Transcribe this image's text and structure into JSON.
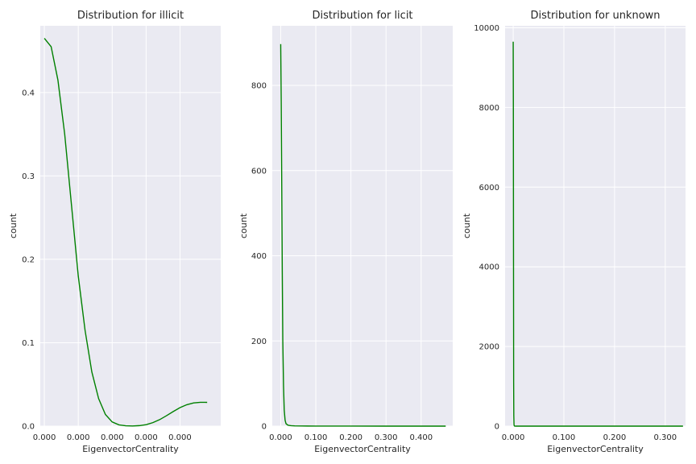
{
  "chart_data": [
    {
      "type": "line",
      "title": "Distribution for illicit",
      "xlabel": "EigenvectorCentrality",
      "ylabel": "count",
      "grid": true,
      "color": "#008000",
      "xlim": [
        -1.2e-07,
        5.2e-06
      ],
      "ylim": [
        0,
        0.48
      ],
      "xticks": [
        0.0,
        1e-06,
        2e-06,
        3e-06,
        4e-06
      ],
      "xtick_labels": [
        "0.000",
        "0.000",
        "0.000",
        "0.000",
        "0.000"
      ],
      "yticks": [
        0.0,
        0.1,
        0.2,
        0.3,
        0.4
      ],
      "ytick_labels": [
        "0.0",
        "0.1",
        "0.2",
        "0.3",
        "0.4"
      ],
      "x": [
        0.0,
        2e-07,
        4e-07,
        6e-07,
        8e-07,
        1e-06,
        1.2e-06,
        1.4e-06,
        1.6e-06,
        1.8e-06,
        2e-06,
        2.2e-06,
        2.4e-06,
        2.6e-06,
        2.8e-06,
        3e-06,
        3.2e-06,
        3.4e-06,
        3.6e-06,
        3.8e-06,
        4e-06,
        4.2e-06,
        4.4e-06,
        4.6e-06,
        4.8e-06
      ],
      "y": [
        0.465,
        0.455,
        0.415,
        0.35,
        0.265,
        0.18,
        0.115,
        0.065,
        0.033,
        0.014,
        0.005,
        0.0015,
        0.0004,
        0.0002,
        0.0006,
        0.0018,
        0.0042,
        0.0078,
        0.0125,
        0.0175,
        0.0222,
        0.0257,
        0.0278,
        0.0286,
        0.0285
      ]
    },
    {
      "type": "line",
      "title": "Distribution for licit",
      "xlabel": "EigenvectorCentrality",
      "ylabel": "count",
      "grid": true,
      "color": "#008000",
      "xlim": [
        -0.024,
        0.49
      ],
      "ylim": [
        0,
        940
      ],
      "xticks": [
        0.0,
        0.1,
        0.2,
        0.3,
        0.4
      ],
      "xtick_labels": [
        "0.000",
        "0.100",
        "0.200",
        "0.300",
        "0.400"
      ],
      "yticks": [
        0,
        200,
        400,
        600,
        800
      ],
      "ytick_labels": [
        "0",
        "200",
        "400",
        "600",
        "800"
      ],
      "x": [
        0.0,
        0.0015,
        0.003,
        0.0045,
        0.006,
        0.008,
        0.01,
        0.0125,
        0.015,
        0.02,
        0.025,
        0.03,
        0.04,
        0.06,
        0.1,
        0.2,
        0.3,
        0.4,
        0.47
      ],
      "y": [
        897,
        760,
        560,
        360,
        200,
        95,
        38,
        14,
        6,
        2.5,
        1.5,
        1.0,
        0.6,
        0.3,
        0.15,
        0.05,
        0.02,
        0.01,
        0.0
      ]
    },
    {
      "type": "line",
      "title": "Distribution for unknown",
      "xlabel": "EigenvectorCentrality",
      "ylabel": "count",
      "grid": true,
      "color": "#008000",
      "xlim": [
        -0.016,
        0.34
      ],
      "ylim": [
        0,
        10050
      ],
      "xticks": [
        0.0,
        0.1,
        0.2,
        0.3
      ],
      "xtick_labels": [
        "0.000",
        "0.100",
        "0.200",
        "0.300"
      ],
      "yticks": [
        0,
        2000,
        4000,
        6000,
        8000,
        10000
      ],
      "ytick_labels": [
        "0",
        "2000",
        "4000",
        "6000",
        "8000",
        "10000"
      ],
      "x": [
        0.0,
        0.0003,
        0.0006,
        0.0009,
        0.0012,
        0.0016,
        0.002,
        0.0025,
        0.003,
        0.005,
        0.01,
        0.05,
        0.1,
        0.2,
        0.3,
        0.335
      ],
      "y": [
        9650,
        8200,
        4500,
        1100,
        260,
        40,
        10,
        2,
        0.5,
        0.1,
        0.05,
        0.02,
        0.01,
        0.005,
        0.0,
        0.0
      ]
    }
  ]
}
